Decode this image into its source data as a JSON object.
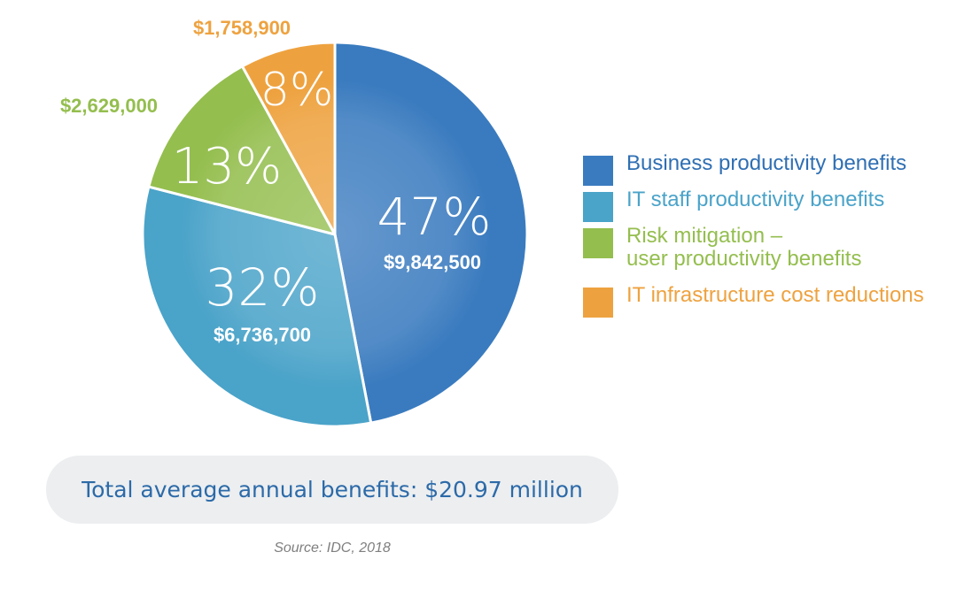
{
  "chart_data": {
    "type": "pie",
    "categories": [
      "Business productivity benefits",
      "IT staff productivity benefits",
      "Risk mitigation –\nuser productivity benefits",
      "IT infrastructure cost reductions"
    ],
    "values": [
      47,
      32,
      13,
      8
    ],
    "value_labels": [
      "47%",
      "32%",
      "13%",
      "8%"
    ],
    "amount_labels": [
      "$9,842,500",
      "$6,736,700",
      "$2,629,000",
      "$1,758,900"
    ],
    "colors": [
      "#3a7bbf",
      "#4aa3c9",
      "#94be4e",
      "#eea23f"
    ],
    "legend_placement": "right"
  },
  "total_label": "Total average annual benefits: $20.97 million",
  "source": "Source: IDC, 2018"
}
